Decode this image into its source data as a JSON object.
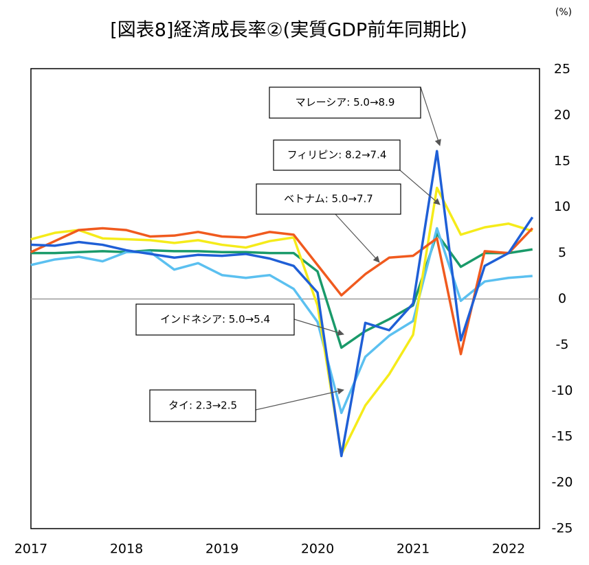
{
  "chart_data": {
    "type": "line",
    "title": "[図表8]経済成長率②(実質GDP前年同期比)",
    "y_label": "(%)",
    "categories": [
      "2017",
      null,
      null,
      null,
      "2018",
      null,
      null,
      null,
      "2019",
      null,
      null,
      null,
      "2020",
      null,
      null,
      null,
      "2021",
      null,
      null,
      null,
      "2022",
      null
    ],
    "series": [
      {
        "name": "マレーシア",
        "color": "#1f5fd6",
        "values": [
          5.9,
          5.8,
          6.2,
          5.9,
          5.3,
          4.9,
          4.5,
          4.8,
          4.7,
          4.9,
          4.4,
          3.6,
          0.7,
          -17.1,
          -2.6,
          -3.4,
          -0.5,
          16.1,
          -4.5,
          3.6,
          5.0,
          8.9
        ]
      },
      {
        "name": "フィリピン",
        "color": "#f5eb1a",
        "values": [
          6.5,
          7.2,
          7.5,
          6.6,
          6.5,
          6.4,
          6.1,
          6.4,
          5.9,
          5.6,
          6.3,
          6.7,
          -0.7,
          -16.9,
          -11.6,
          -8.2,
          -3.9,
          12.1,
          7.0,
          7.8,
          8.2,
          7.4
        ]
      },
      {
        "name": "ベトナム",
        "color": "#f05a1e",
        "values": [
          5.1,
          6.3,
          7.5,
          7.7,
          7.5,
          6.8,
          6.9,
          7.3,
          6.8,
          6.7,
          7.3,
          7.0,
          3.7,
          0.4,
          2.7,
          4.5,
          4.7,
          6.6,
          -6.0,
          5.2,
          5.0,
          7.7
        ]
      },
      {
        "name": "インドネシア",
        "color": "#1a9a6a",
        "values": [
          5.0,
          5.0,
          5.1,
          5.2,
          5.1,
          5.3,
          5.2,
          5.2,
          5.1,
          5.1,
          5.0,
          5.0,
          3.0,
          -5.3,
          -3.5,
          -2.2,
          -0.7,
          7.1,
          3.5,
          5.0,
          5.0,
          5.4
        ]
      },
      {
        "name": "タイ",
        "color": "#5bc0f0",
        "values": [
          3.7,
          4.3,
          4.6,
          4.1,
          5.1,
          5.1,
          3.2,
          3.9,
          2.6,
          2.3,
          2.6,
          1.1,
          -2.5,
          -12.4,
          -6.3,
          -4.0,
          -2.4,
          7.7,
          -0.2,
          1.9,
          2.3,
          2.5
        ]
      }
    ],
    "annotations": [
      "マレーシア: 5.0→8.9",
      "フィリピン: 8.2→7.4",
      "ベトナム: 5.0→7.7",
      "インドネシア: 5.0→5.4",
      "タイ: 2.3→2.5"
    ],
    "ylim": [
      -25,
      25
    ],
    "yticks": [
      -25,
      -20,
      -15,
      -10,
      -5,
      0,
      5,
      10,
      15,
      20,
      25
    ]
  }
}
